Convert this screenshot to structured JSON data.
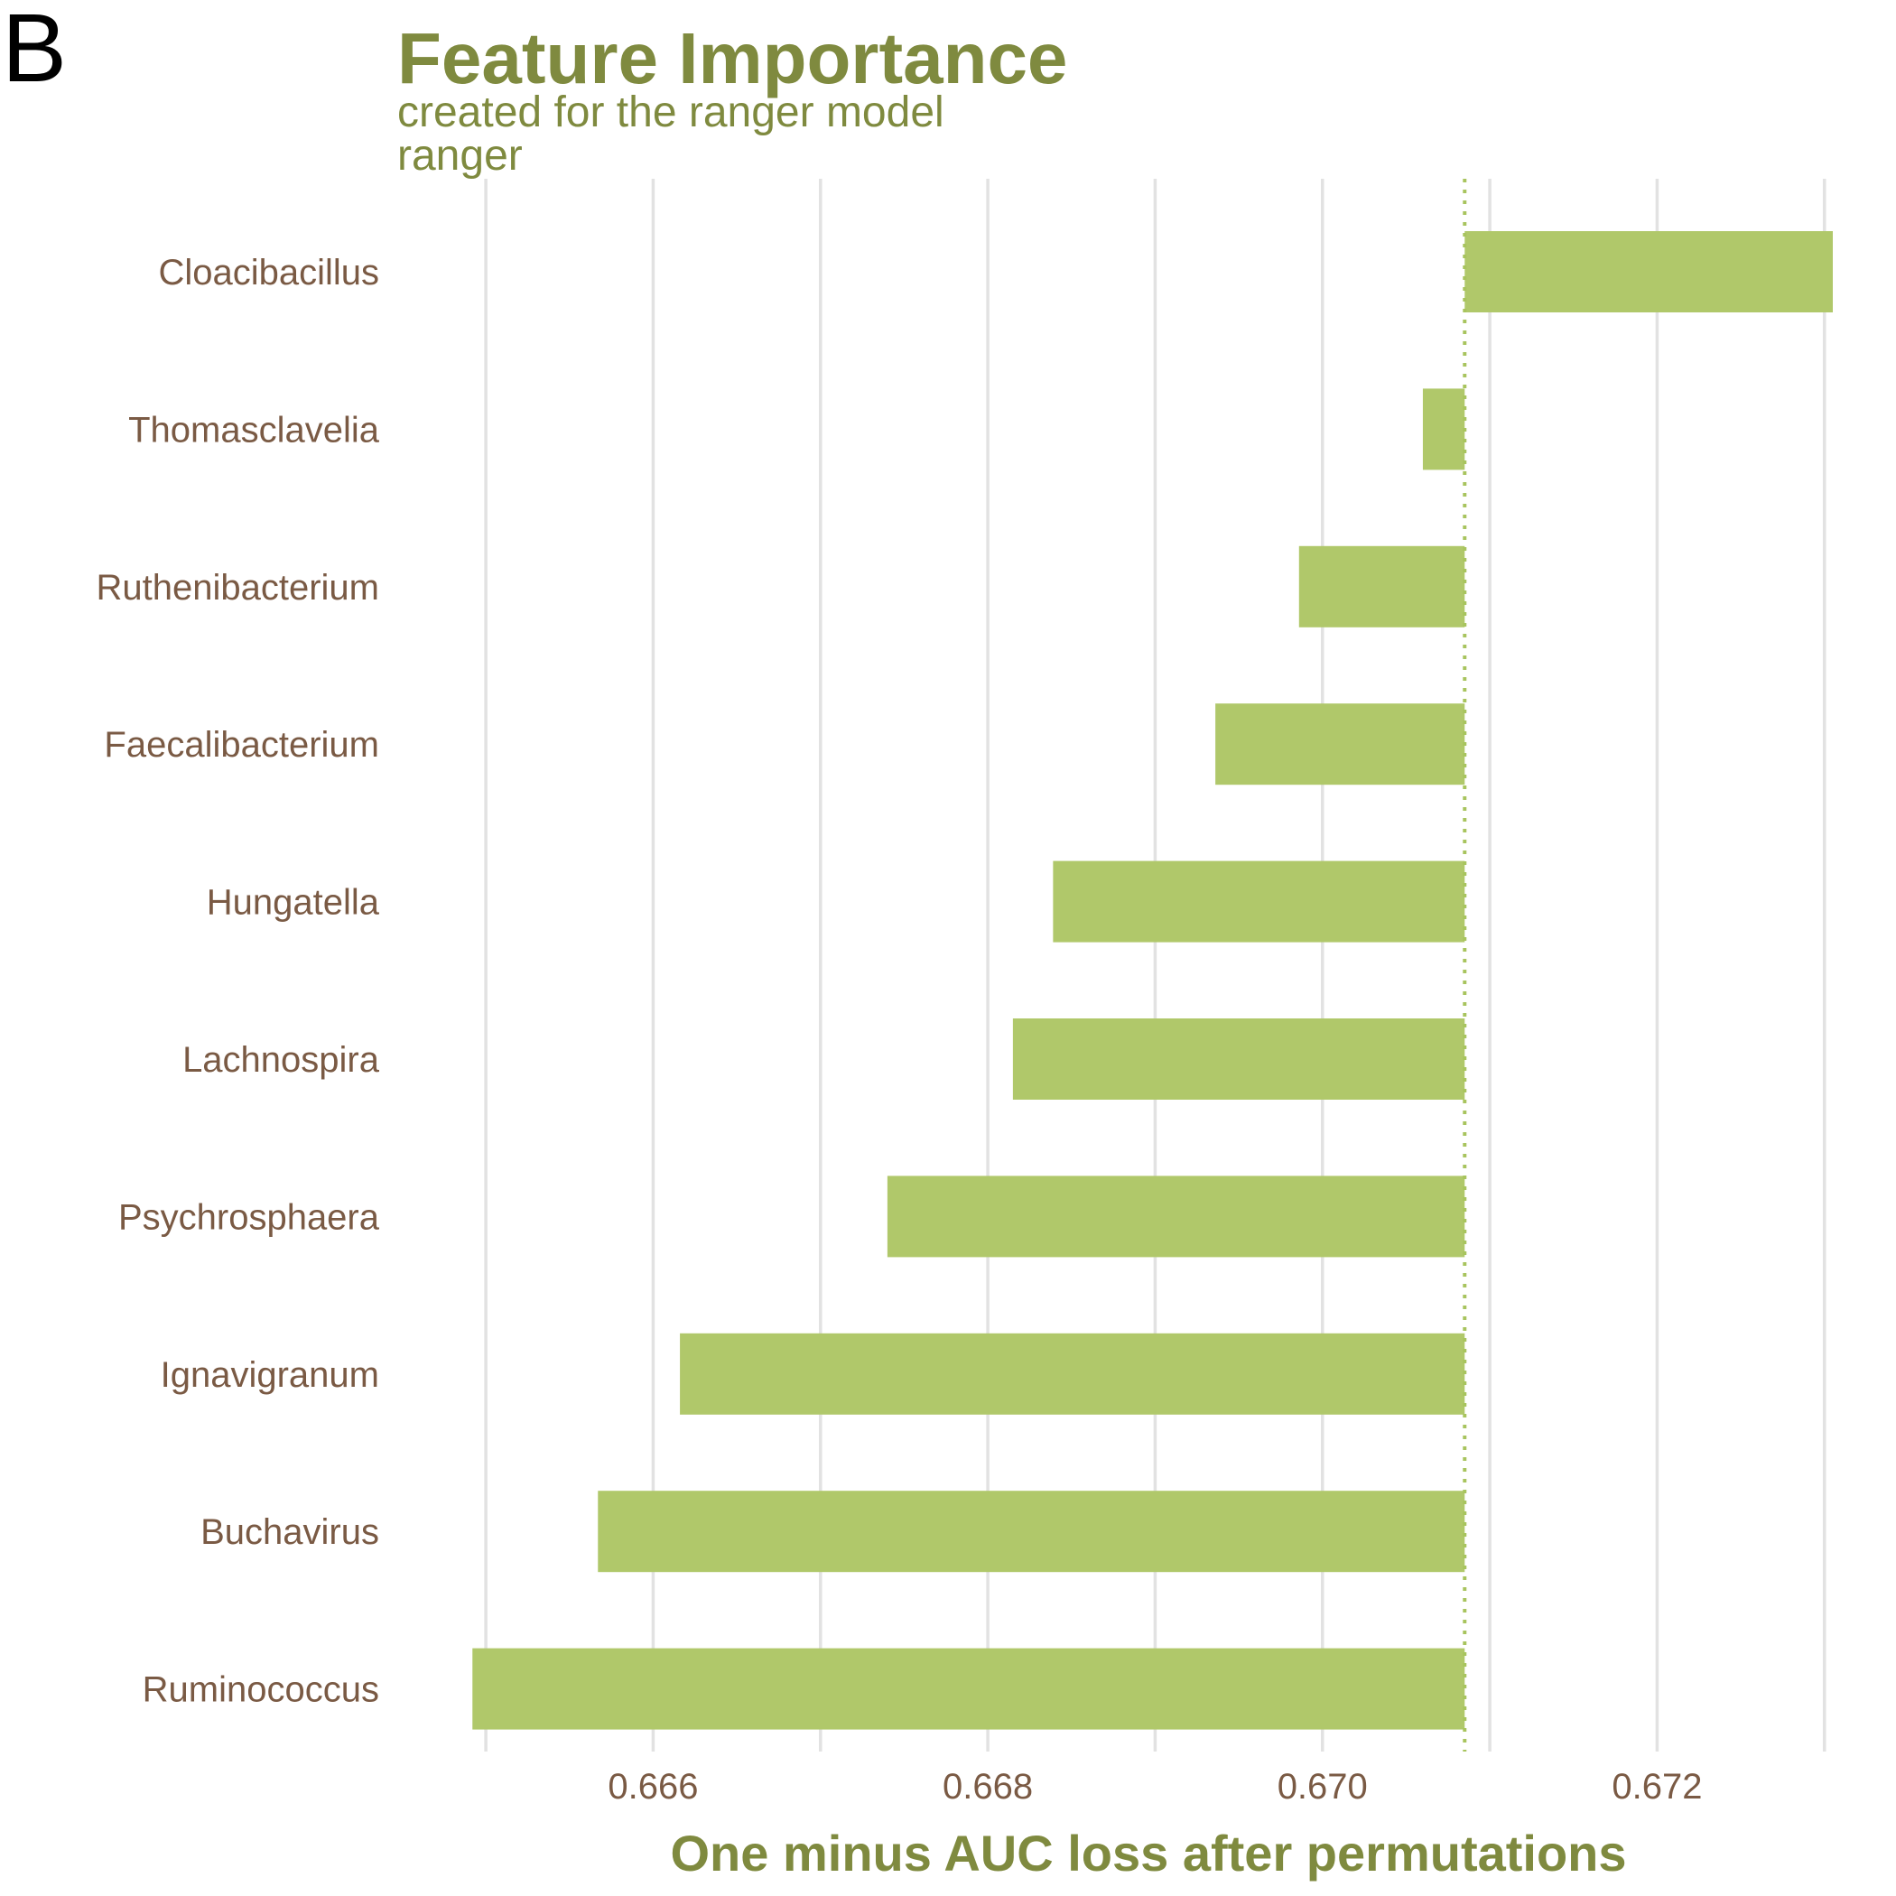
{
  "panel_label": "B",
  "colors": {
    "title": "#7f8a3f",
    "axis_text": "#7a5a44",
    "bar": "#b0c86a",
    "baseline": "#a8c45e",
    "grid": "#e2e2e2"
  },
  "chart_data": {
    "type": "bar",
    "orientation": "horizontal",
    "title": "Feature Importance",
    "subtitle_lines": [
      "created for the ranger model",
      "ranger"
    ],
    "xlabel": "One minus AUC loss after permutations",
    "xlim": [
      0.66487,
      0.67305
    ],
    "xticks": [
      "0.666",
      "0.668",
      "0.670",
      "0.672"
    ],
    "baseline": 0.67085,
    "grid": true,
    "bars": [
      {
        "label": "Cloacibacillus",
        "value": 0.67305
      },
      {
        "label": "Thomasclavelia",
        "value": 0.6706
      },
      {
        "label": "Ruthenibacterium",
        "value": 0.66986
      },
      {
        "label": "Faecalibacterium",
        "value": 0.66936
      },
      {
        "label": "Hungatella",
        "value": 0.66839
      },
      {
        "label": "Lachnospira",
        "value": 0.66815
      },
      {
        "label": "Psychrosphaera",
        "value": 0.6674
      },
      {
        "label": "Ignavigranum",
        "value": 0.66616
      },
      {
        "label": "Buchavirus",
        "value": 0.66567
      },
      {
        "label": "Ruminococcus",
        "value": 0.66492
      }
    ]
  }
}
